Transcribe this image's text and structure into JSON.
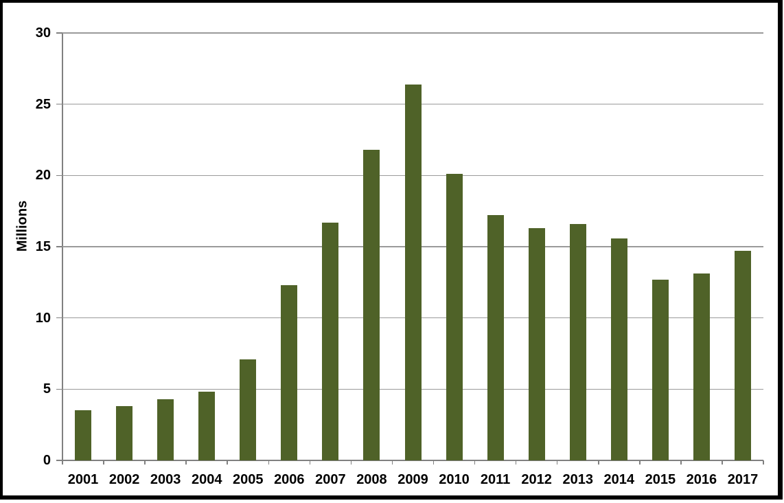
{
  "chart_data": {
    "type": "bar",
    "title": "",
    "xlabel": "",
    "ylabel": "Millions",
    "categories": [
      "2001",
      "2002",
      "2003",
      "2004",
      "2005",
      "2006",
      "2007",
      "2008",
      "2009",
      "2010",
      "2011",
      "2012",
      "2013",
      "2014",
      "2015",
      "2016",
      "2017"
    ],
    "values": [
      3.5,
      3.8,
      4.3,
      4.8,
      7.1,
      12.3,
      16.7,
      21.8,
      26.4,
      20.1,
      17.2,
      16.3,
      16.6,
      15.6,
      12.7,
      13.1,
      14.7
    ],
    "ylim": [
      0,
      30
    ],
    "yticks": [
      0,
      5,
      10,
      15,
      20,
      25,
      30
    ],
    "grid": true,
    "legend": false,
    "colors": {
      "bar": "#4F6228",
      "gridline": "#9a9a9a",
      "axis": "#808080",
      "text": "#000000",
      "frame": "#000000",
      "background": "#ffffff"
    }
  }
}
